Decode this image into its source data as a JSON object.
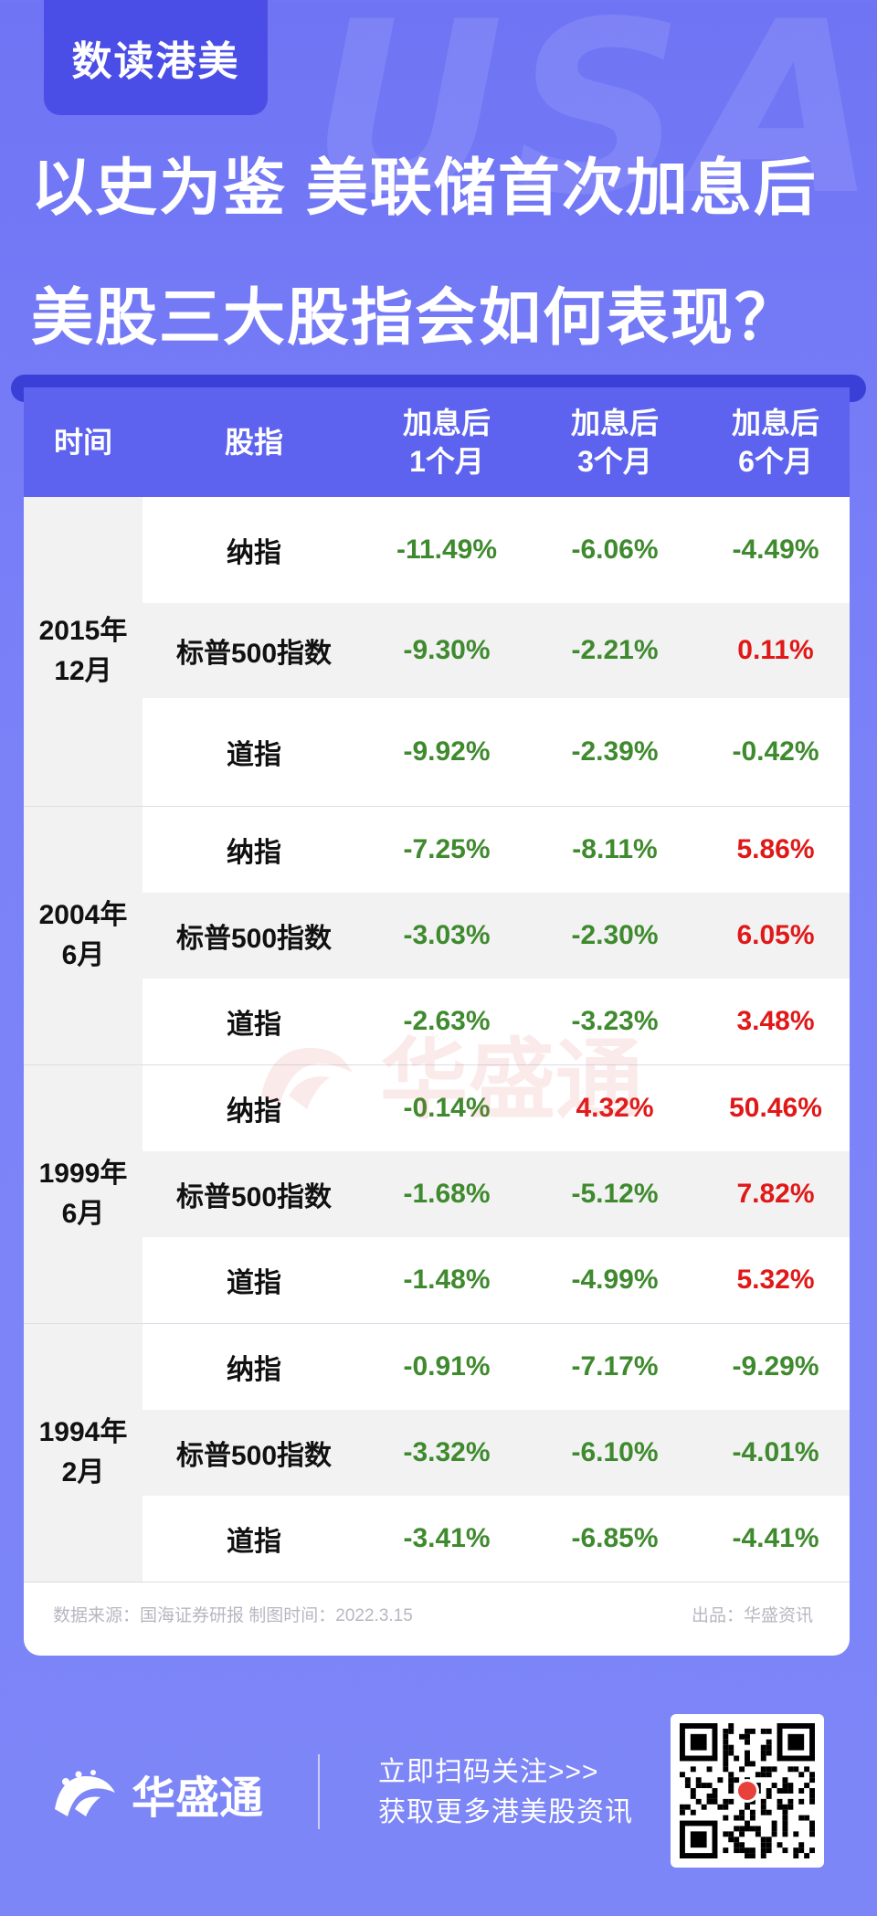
{
  "brand": {
    "tag": "数读港美",
    "bg_text": "USA",
    "logo_text": "华盛通",
    "watermark": "华盛通"
  },
  "headline": {
    "line1": "以史为鉴  美联储首次加息后",
    "line2": "美股三大股指会如何表现？"
  },
  "table": {
    "columns": {
      "time": "时间",
      "index": "股指",
      "m1": "加息后\n1个月",
      "m3": "加息后\n3个月",
      "m6": "加息后\n6个月"
    },
    "groups": [
      {
        "period": "2015年\n12月",
        "rows": [
          {
            "index": "纳指",
            "m1": "-11.49%",
            "m3": "-6.06%",
            "m6": "-4.49%"
          },
          {
            "index": "标普500指数",
            "m1": "-9.30%",
            "m3": "-2.21%",
            "m6": "0.11%"
          },
          {
            "index": "道指",
            "m1": "-9.92%",
            "m3": "-2.39%",
            "m6": "-0.42%"
          }
        ]
      },
      {
        "period": "2004年\n6月",
        "rows": [
          {
            "index": "纳指",
            "m1": "-7.25%",
            "m3": "-8.11%",
            "m6": "5.86%"
          },
          {
            "index": "标普500指数",
            "m1": "-3.03%",
            "m3": "-2.30%",
            "m6": "6.05%"
          },
          {
            "index": "道指",
            "m1": "-2.63%",
            "m3": "-3.23%",
            "m6": "3.48%"
          }
        ]
      },
      {
        "period": "1999年\n6月",
        "rows": [
          {
            "index": "纳指",
            "m1": "-0.14%",
            "m3": "4.32%",
            "m6": "50.46%"
          },
          {
            "index": "标普500指数",
            "m1": "-1.68%",
            "m3": "-5.12%",
            "m6": "7.82%"
          },
          {
            "index": "道指",
            "m1": "-1.48%",
            "m3": "-4.99%",
            "m6": "5.32%"
          }
        ]
      },
      {
        "period": "1994年\n2月",
        "rows": [
          {
            "index": "纳指",
            "m1": "-0.91%",
            "m3": "-7.17%",
            "m6": "-9.29%"
          },
          {
            "index": "标普500指数",
            "m1": "-3.32%",
            "m3": "-6.10%",
            "m6": "-4.01%"
          },
          {
            "index": "道指",
            "m1": "-3.41%",
            "m3": "-6.85%",
            "m6": "-4.41%"
          }
        ]
      }
    ]
  },
  "source_note": "数据来源：国海证券研报 制图时间：2022.3.15",
  "publisher_note": "出品：华盛资讯",
  "footer": {
    "cta_line1": "立即扫码关注>>>",
    "cta_line2": "获取更多港美股资讯"
  },
  "colors": {
    "negative": "#3f8a2e",
    "positive": "#e01818",
    "header_bg": "#5d63ee",
    "page_bg": "#7b82f8"
  }
}
